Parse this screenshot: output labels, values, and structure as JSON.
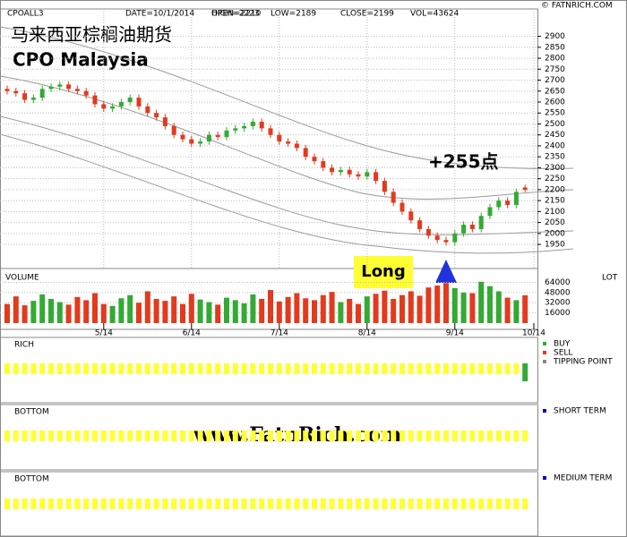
{
  "chart_data": [
    {
      "type": "candlestick",
      "title": "马来西亚棕榈油期货",
      "subtitle": "CPO Malaysia",
      "symbol": "CPOALL3",
      "info": [
        "DATE=10/1/2014",
        "OPEN=2210",
        "HIGH=2223",
        "LOW=2189",
        "CLOSE=2199",
        "VOL=43624"
      ],
      "open": [
        2660,
        2650,
        2640,
        2610,
        2620,
        2660,
        2670,
        2680,
        2660,
        2650,
        2630,
        2590,
        2570,
        2580,
        2600,
        2620,
        2580,
        2550,
        2530,
        2490,
        2450,
        2430,
        2410,
        2420,
        2450,
        2440,
        2470,
        2480,
        2490,
        2510,
        2480,
        2450,
        2420,
        2410,
        2390,
        2350,
        2330,
        2300,
        2280,
        2290,
        2270,
        2260,
        2280,
        2240,
        2190,
        2140,
        2100,
        2060,
        2020,
        1990,
        1970,
        1960,
        2000,
        2040,
        2020,
        2080,
        2120,
        2150,
        2130,
        2210
      ],
      "high": [
        2675,
        2665,
        2655,
        2635,
        2675,
        2685,
        2695,
        2695,
        2675,
        2665,
        2645,
        2605,
        2595,
        2615,
        2635,
        2635,
        2595,
        2565,
        2545,
        2505,
        2465,
        2445,
        2435,
        2465,
        2465,
        2485,
        2495,
        2505,
        2525,
        2525,
        2495,
        2465,
        2435,
        2425,
        2405,
        2365,
        2345,
        2315,
        2305,
        2305,
        2285,
        2295,
        2295,
        2255,
        2205,
        2155,
        2115,
        2075,
        2035,
        2005,
        1985,
        2015,
        2055,
        2055,
        2095,
        2135,
        2165,
        2165,
        2205,
        2223
      ],
      "low": [
        2635,
        2625,
        2595,
        2595,
        2605,
        2645,
        2655,
        2645,
        2635,
        2615,
        2575,
        2555,
        2555,
        2565,
        2585,
        2565,
        2535,
        2515,
        2475,
        2435,
        2415,
        2395,
        2395,
        2405,
        2425,
        2425,
        2455,
        2465,
        2475,
        2465,
        2435,
        2405,
        2395,
        2375,
        2335,
        2315,
        2285,
        2265,
        2265,
        2255,
        2245,
        2245,
        2225,
        2175,
        2125,
        2085,
        2045,
        2005,
        1975,
        1955,
        1945,
        1945,
        1985,
        2005,
        2005,
        2065,
        2105,
        2115,
        2115,
        2189
      ],
      "close": [
        2650,
        2640,
        2610,
        2620,
        2660,
        2670,
        2680,
        2660,
        2650,
        2630,
        2590,
        2570,
        2580,
        2600,
        2620,
        2580,
        2550,
        2530,
        2490,
        2450,
        2430,
        2410,
        2420,
        2450,
        2440,
        2470,
        2480,
        2490,
        2510,
        2480,
        2450,
        2420,
        2410,
        2390,
        2350,
        2330,
        2300,
        2280,
        2290,
        2270,
        2260,
        2280,
        2240,
        2190,
        2140,
        2100,
        2060,
        2020,
        1990,
        1970,
        1960,
        2000,
        2040,
        2020,
        2080,
        2120,
        2150,
        2130,
        2190,
        2199
      ],
      "xlim": [
        0,
        60
      ],
      "xticks": [
        {
          "value": 11,
          "label": "5/14"
        },
        {
          "value": 21,
          "label": "6/14"
        },
        {
          "value": 31,
          "label": "7/14"
        },
        {
          "value": 41,
          "label": "8/14"
        },
        {
          "value": 51,
          "label": "9/14"
        },
        {
          "value": 60,
          "label": "10/14"
        }
      ],
      "ylim": [
        1840,
        3025
      ],
      "yticks": [
        1950,
        2000,
        2050,
        2100,
        2150,
        2200,
        2250,
        2300,
        2350,
        2400,
        2450,
        2500,
        2550,
        2600,
        2650,
        2700,
        2750,
        2800,
        2850,
        2900
      ],
      "up_color": "#33aa33",
      "down_color": "#e23a1e",
      "grid": true,
      "annotations": [
        "+255点",
        "Long"
      ]
    },
    {
      "type": "bar",
      "title": "VOLUME",
      "y_label": "LOT",
      "values": [
        30000,
        42000,
        28000,
        35000,
        45000,
        38000,
        33000,
        29000,
        41000,
        36000,
        47000,
        30000,
        27000,
        39000,
        44000,
        32000,
        50000,
        38000,
        35000,
        42000,
        30000,
        46000,
        37000,
        33000,
        29000,
        40000,
        36000,
        31000,
        45000,
        38000,
        52000,
        34000,
        41000,
        47000,
        39000,
        36000,
        44000,
        49000,
        33000,
        38000,
        30000,
        42000,
        46000,
        51000,
        38000,
        44000,
        50000,
        43000,
        56000,
        59000,
        63000,
        55000,
        48000,
        47000,
        65000,
        58000,
        50000,
        40000,
        36000,
        43624
      ],
      "ylim": [
        0,
        85800
      ],
      "yticks": [
        16000,
        32000,
        48000,
        64000
      ]
    }
  ],
  "copyright": "© FATNRICH.COM",
  "watermark": "www.FatnRich.com",
  "panels": [
    {
      "title": "RICH",
      "legend": [
        "BUY",
        "SELL",
        "TIPPING POINT"
      ],
      "legend_colors": [
        "#33aa33",
        "#e23a1e",
        "#888888"
      ]
    },
    {
      "title": "BOTTOM",
      "legend": [
        "SHORT TERM"
      ],
      "legend_colors": [
        "#0000cc"
      ]
    },
    {
      "title": "BOTTOM",
      "legend": [
        "MEDIUM TERM"
      ],
      "legend_colors": [
        "#0000cc"
      ]
    }
  ]
}
